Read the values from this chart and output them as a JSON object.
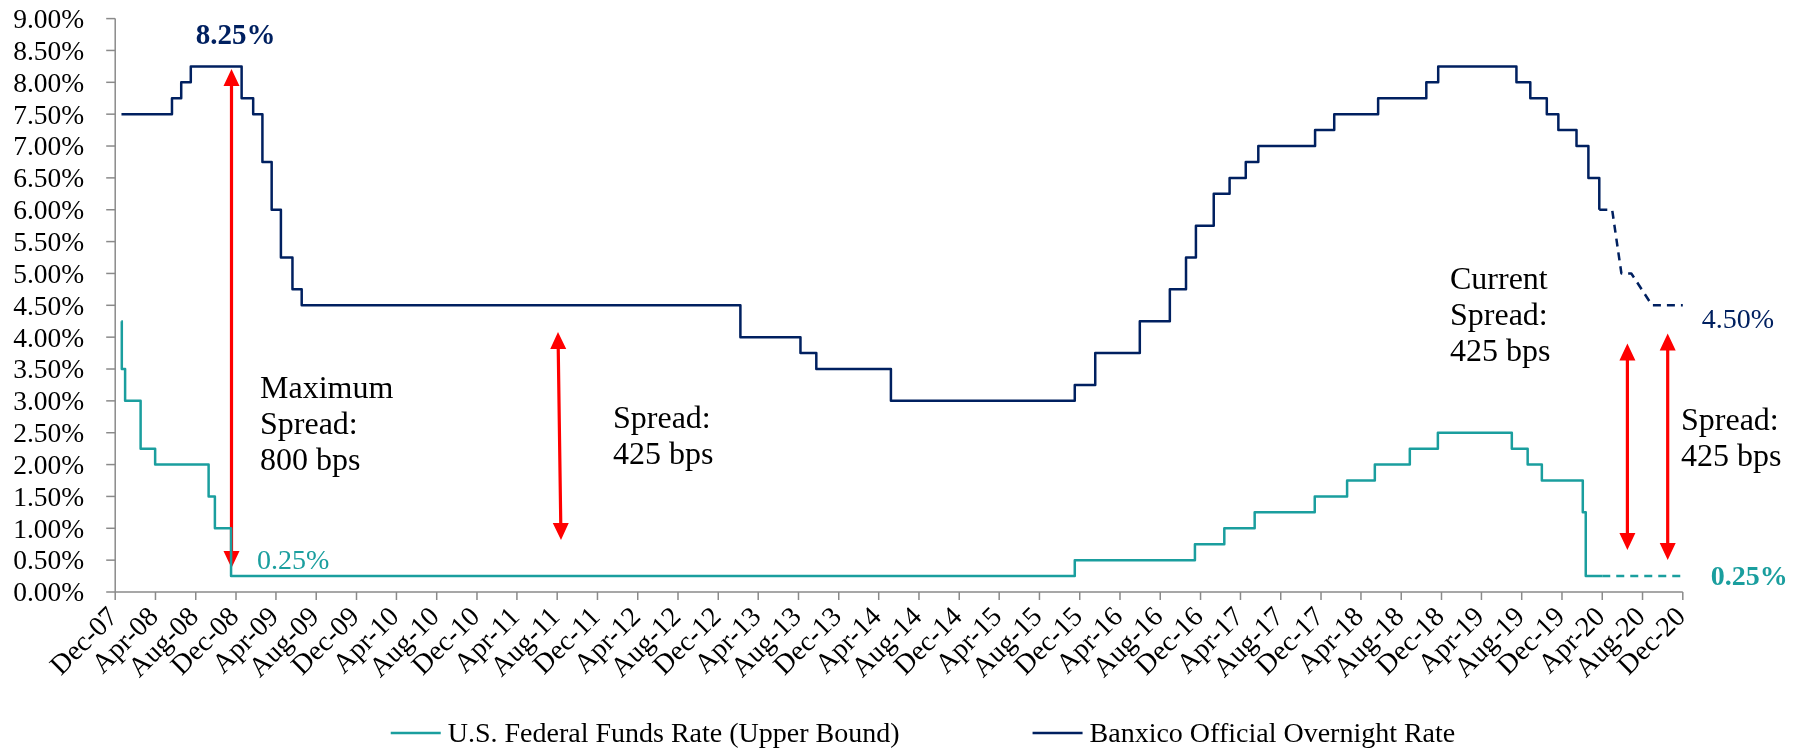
{
  "chart_data": {
    "type": "step",
    "xlim": [
      "2007-12",
      "2020-12"
    ],
    "xticks": [
      {
        "value": "2007-12",
        "label": "Dec-07"
      },
      {
        "value": "2008-04",
        "label": "Apr-08"
      },
      {
        "value": "2008-08",
        "label": "Aug-08"
      },
      {
        "value": "2008-12",
        "label": "Dec-08"
      },
      {
        "value": "2009-04",
        "label": "Apr-09"
      },
      {
        "value": "2009-08",
        "label": "Aug-09"
      },
      {
        "value": "2009-12",
        "label": "Dec-09"
      },
      {
        "value": "2010-04",
        "label": "Apr-10"
      },
      {
        "value": "2010-08",
        "label": "Aug-10"
      },
      {
        "value": "2010-12",
        "label": "Dec-10"
      },
      {
        "value": "2011-04",
        "label": "Apr-11"
      },
      {
        "value": "2011-08",
        "label": "Aug-11"
      },
      {
        "value": "2011-12",
        "label": "Dec-11"
      },
      {
        "value": "2012-04",
        "label": "Apr-12"
      },
      {
        "value": "2012-08",
        "label": "Aug-12"
      },
      {
        "value": "2012-12",
        "label": "Dec-12"
      },
      {
        "value": "2013-04",
        "label": "Apr-13"
      },
      {
        "value": "2013-08",
        "label": "Aug-13"
      },
      {
        "value": "2013-12",
        "label": "Dec-13"
      },
      {
        "value": "2014-04",
        "label": "Apr-14"
      },
      {
        "value": "2014-08",
        "label": "Aug-14"
      },
      {
        "value": "2014-12",
        "label": "Dec-14"
      },
      {
        "value": "2015-04",
        "label": "Apr-15"
      },
      {
        "value": "2015-08",
        "label": "Aug-15"
      },
      {
        "value": "2015-12",
        "label": "Dec-15"
      },
      {
        "value": "2016-04",
        "label": "Apr-16"
      },
      {
        "value": "2016-08",
        "label": "Aug-16"
      },
      {
        "value": "2016-12",
        "label": "Dec-16"
      },
      {
        "value": "2017-04",
        "label": "Apr-17"
      },
      {
        "value": "2017-08",
        "label": "Aug-17"
      },
      {
        "value": "2017-12",
        "label": "Dec-17"
      },
      {
        "value": "2018-04",
        "label": "Apr-18"
      },
      {
        "value": "2018-08",
        "label": "Aug-18"
      },
      {
        "value": "2018-12",
        "label": "Dec-18"
      },
      {
        "value": "2019-04",
        "label": "Apr-19"
      },
      {
        "value": "2019-08",
        "label": "Aug-19"
      },
      {
        "value": "2019-12",
        "label": "Dec-19"
      },
      {
        "value": "2020-04",
        "label": "Apr-20"
      },
      {
        "value": "2020-08",
        "label": "Aug-20"
      },
      {
        "value": "2020-12",
        "label": "Dec-20"
      }
    ],
    "ylim": [
      0,
      9
    ],
    "yticks": [
      {
        "value": 0,
        "label": "0.00%"
      },
      {
        "value": 0.5,
        "label": "0.50%"
      },
      {
        "value": 1,
        "label": "1.00%"
      },
      {
        "value": 1.5,
        "label": "1.50%"
      },
      {
        "value": 2,
        "label": "2.00%"
      },
      {
        "value": 2.5,
        "label": "2.50%"
      },
      {
        "value": 3,
        "label": "3.00%"
      },
      {
        "value": 3.5,
        "label": "3.50%"
      },
      {
        "value": 4,
        "label": "4.00%"
      },
      {
        "value": 4.5,
        "label": "4.50%"
      },
      {
        "value": 5,
        "label": "5.00%"
      },
      {
        "value": 5.5,
        "label": "5.50%"
      },
      {
        "value": 6,
        "label": "6.00%"
      },
      {
        "value": 6.5,
        "label": "6.50%"
      },
      {
        "value": 7,
        "label": "7.00%"
      },
      {
        "value": 7.5,
        "label": "7.50%"
      },
      {
        "value": 8,
        "label": "8.00%"
      },
      {
        "value": 8.5,
        "label": "8.50%"
      },
      {
        "value": 9,
        "label": "9.00%"
      }
    ],
    "legend": "bottom",
    "annotations": [
      "Maximum Spread: 800 bps",
      "Spread: 425 bps",
      "Current Spread: 425 bps",
      "Spread: 425 bps"
    ],
    "series": [
      {
        "name": "U.S. Federal Funds Rate (Upper Bound)",
        "color": "#1a9e9e",
        "x": [
          "2007-12-20",
          "2007-12-21",
          "2007-12-31",
          "2008-02-16",
          "2008-03-31",
          "2008-09-09",
          "2008-09-28",
          "2008-11-16",
          "2015-11-16",
          "2016-11-14",
          "2017-02-11",
          "2017-05-14",
          "2017-11-12",
          "2018-02-18",
          "2018-05-13",
          "2018-08-27",
          "2018-11-20",
          "2019-07-02",
          "2019-08-19",
          "2019-10-01",
          "2020-02-02",
          "2020-02-11",
          "2020-04-01"
        ],
        "values": [
          4.25,
          3.5,
          3,
          2.25,
          2,
          1.5,
          1,
          0.25,
          0.5,
          0.75,
          1,
          1.25,
          1.5,
          1.75,
          2,
          2.25,
          2.5,
          2.25,
          2,
          1.75,
          1.25,
          0.25,
          0.25
        ],
        "value_labels": [
          null,
          null,
          null,
          null,
          null,
          null,
          null,
          "0.25%",
          null,
          null,
          null,
          null,
          null,
          null,
          null,
          null,
          null,
          null,
          null,
          null,
          null,
          null,
          null
        ]
      },
      {
        "name": "Banxico Official Overnight Rate",
        "color": "#002060",
        "x": [
          "2007-12-20",
          "2008-05-21",
          "2008-06-18",
          "2008-07-17",
          "2008-12-18",
          "2009-01-22",
          "2009-02-19",
          "2009-03-19",
          "2009-04-16",
          "2009-05-21",
          "2009-06-18",
          "2013-02-06",
          "2013-08-07",
          "2013-09-24",
          "2014-05-08",
          "2015-11-16",
          "2016-01-17",
          "2016-05-31",
          "2016-08-30",
          "2016-10-18",
          "2016-11-17",
          "2017-01-10",
          "2017-02-27",
          "2017-04-17",
          "2017-05-25",
          "2017-11-13",
          "2018-01-10",
          "2018-05-23",
          "2018-10-16",
          "2018-11-21",
          "2019-07-16",
          "2019-08-27",
          "2019-10-16",
          "2019-11-20",
          "2020-01-14",
          "2020-02-19",
          "2020-03-23"
        ],
        "values": [
          7.5,
          7.75,
          8,
          8.25,
          7.75,
          7.5,
          6.75,
          6,
          5.25,
          4.75,
          4.5,
          4,
          3.75,
          3.5,
          3,
          3.25,
          3.75,
          4.25,
          4.75,
          5.25,
          5.75,
          6.25,
          6.5,
          6.75,
          7,
          7.25,
          7.5,
          7.75,
          8,
          8.25,
          8,
          7.75,
          7.5,
          7.25,
          7,
          6.5,
          6
        ],
        "value_labels": [
          null,
          null,
          null,
          "8.25%",
          null,
          null,
          null,
          null,
          null,
          null,
          null,
          null,
          null,
          null,
          null,
          null,
          null,
          null,
          null,
          null,
          null,
          null,
          null,
          null,
          null,
          null,
          null,
          null,
          null,
          null,
          null,
          null,
          null,
          null,
          null,
          null,
          null
        ]
      },
      {
        "type": "line",
        "line_style": "dashed",
        "color": "#002060",
        "x": [
          "2020-03-23",
          "2020-05-01",
          "2020-05-29",
          "2020-06-28",
          "2020-08-30",
          "2020-12-01"
        ],
        "values": [
          6,
          6,
          5,
          5,
          4.5,
          4.5
        ],
        "value_labels": [
          null,
          null,
          null,
          null,
          null,
          "4.50%"
        ]
      },
      {
        "type": "line",
        "line_style": "dashed",
        "color": "#1a9e9e",
        "x": [
          "2020-04-01",
          "2020-12-01"
        ],
        "values": [
          0.25,
          0.25
        ],
        "value_labels": [
          null,
          "0.25%"
        ]
      }
    ]
  }
}
